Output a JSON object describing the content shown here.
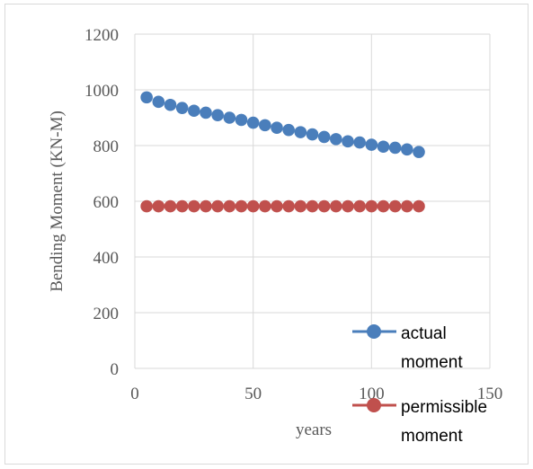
{
  "chart_data": {
    "type": "scatter",
    "title": "",
    "xlabel": "years",
    "ylabel": "Bending Moment (KN-M)",
    "xlim": [
      0,
      150
    ],
    "ylim": [
      0,
      1200
    ],
    "x_ticks": [
      "0",
      "50",
      "100",
      "150"
    ],
    "y_ticks": [
      "0",
      "200",
      "400",
      "600",
      "800",
      "1000",
      "1200"
    ],
    "grid": true,
    "legend_position": "bottom-right",
    "series": [
      {
        "name": "actual moment",
        "legend_lines": [
          "actual",
          "moment"
        ],
        "color": "#4a7ebb",
        "x": [
          5,
          10,
          15,
          20,
          25,
          30,
          35,
          40,
          45,
          50,
          55,
          60,
          65,
          70,
          75,
          80,
          85,
          90,
          95,
          100,
          105,
          110,
          115,
          120
        ],
        "values": [
          973,
          957,
          946,
          935,
          925,
          918,
          909,
          900,
          892,
          882,
          873,
          864,
          856,
          848,
          840,
          831,
          823,
          815,
          811,
          803,
          796,
          792,
          786,
          777
        ]
      },
      {
        "name": "permissible moment",
        "legend_lines": [
          "permissible",
          "moment"
        ],
        "color": "#c0504d",
        "x": [
          5,
          10,
          15,
          20,
          25,
          30,
          35,
          40,
          45,
          50,
          55,
          60,
          65,
          70,
          75,
          80,
          85,
          90,
          95,
          100,
          105,
          110,
          115,
          120
        ],
        "values": [
          582,
          582,
          582,
          582,
          582,
          582,
          582,
          582,
          582,
          582,
          582,
          582,
          582,
          582,
          582,
          582,
          582,
          582,
          582,
          582,
          582,
          582,
          582,
          582
        ]
      }
    ]
  }
}
